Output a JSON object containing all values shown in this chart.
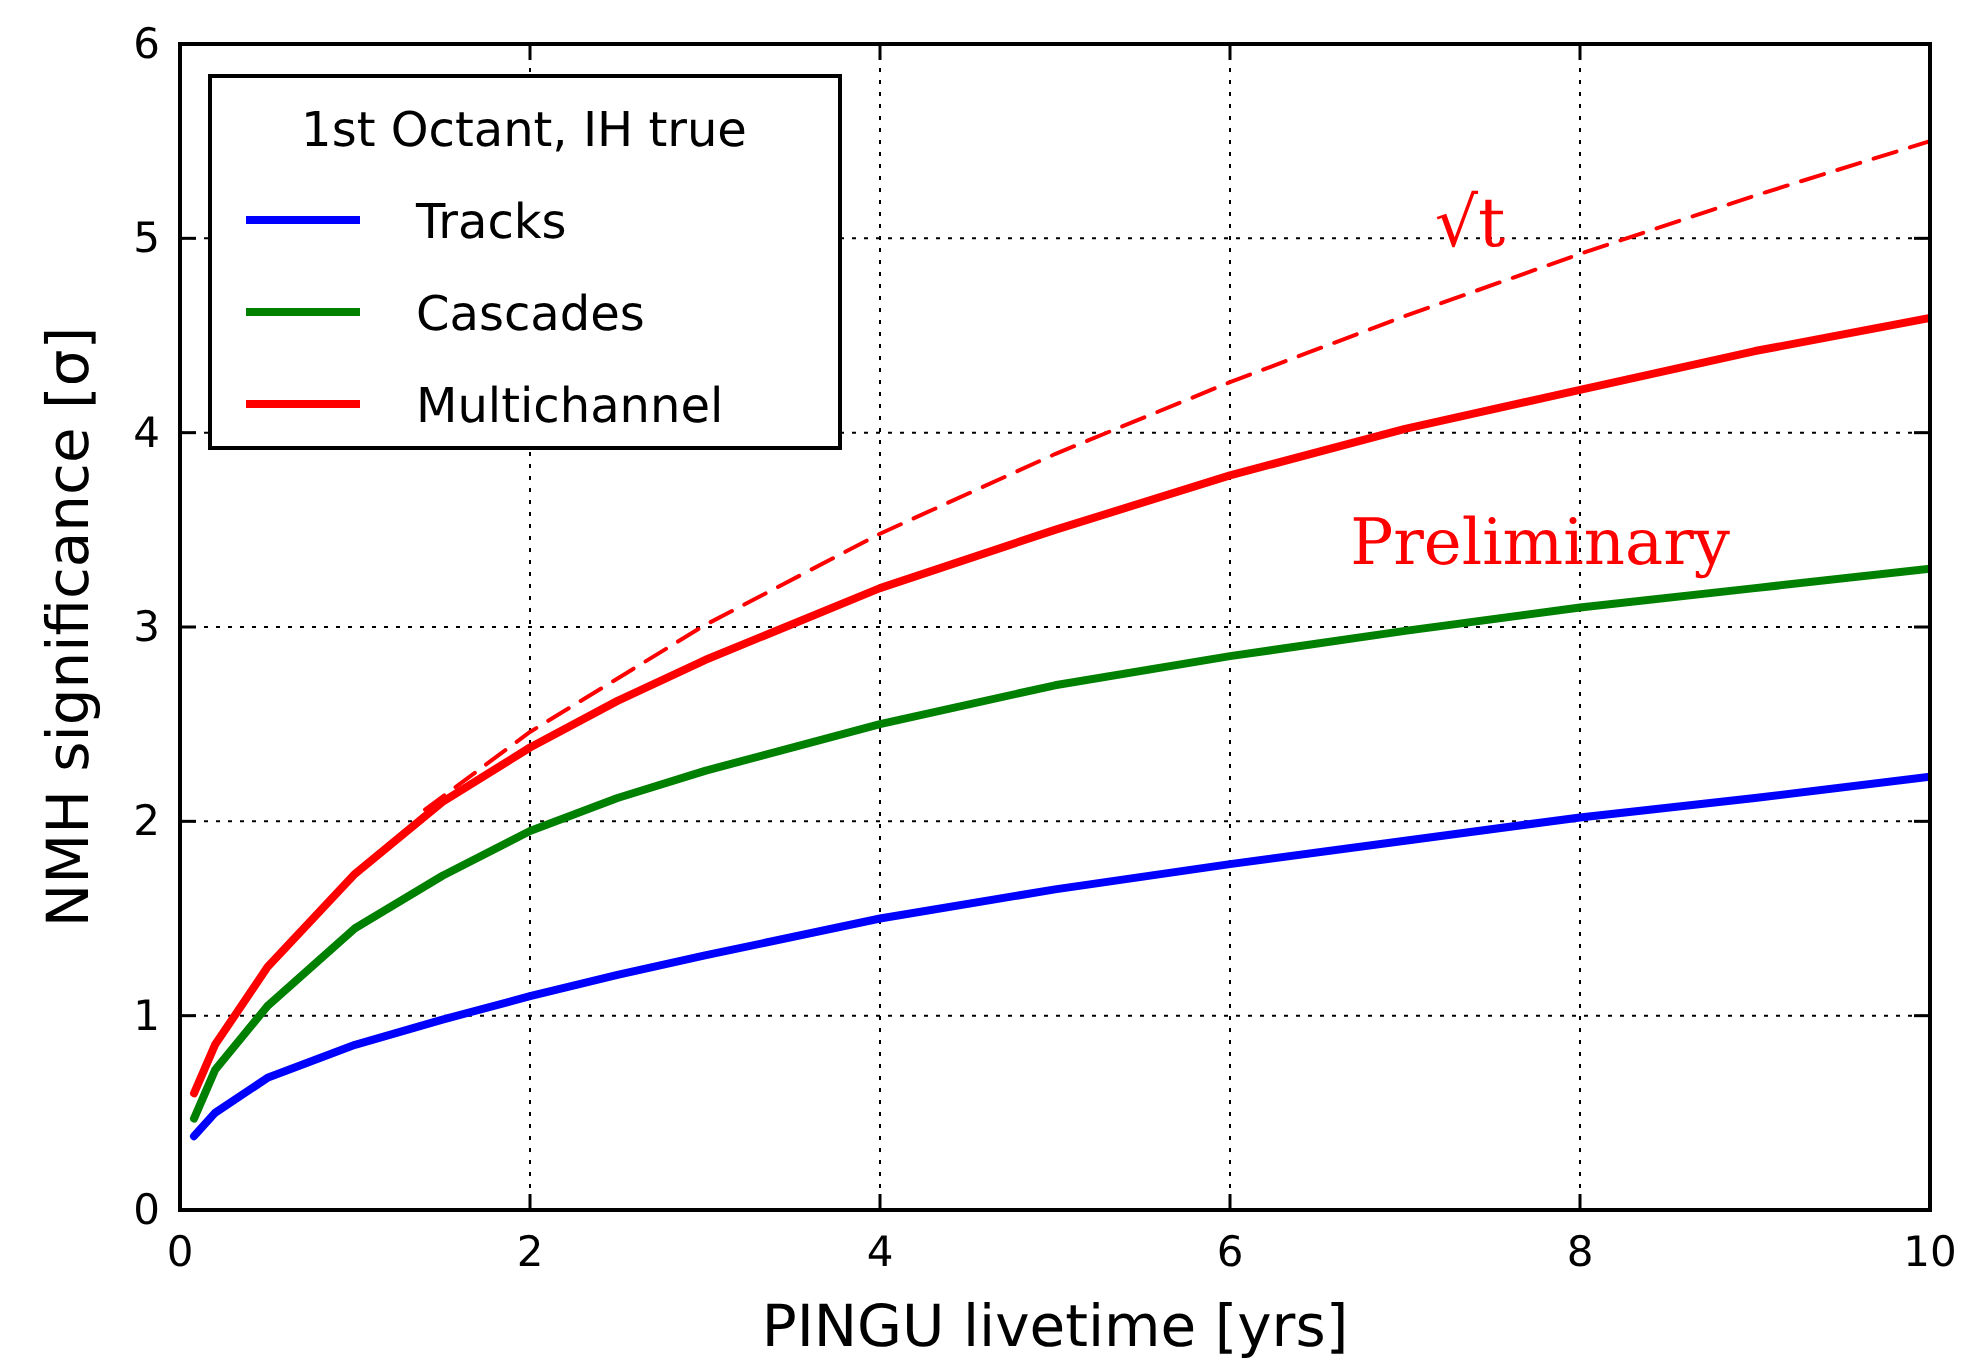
{
  "chart_data": {
    "type": "line",
    "xlabel": "PINGU livetime [yrs]",
    "ylabel": "NMH significance [σ]",
    "legend_title": "1st Octant, IH true",
    "legend": "top left",
    "grid": true,
    "xlim": [
      0,
      10
    ],
    "ylim": [
      0,
      6
    ],
    "xticks": [
      0,
      2,
      4,
      6,
      8,
      10
    ],
    "yticks": [
      0,
      1,
      2,
      3,
      4,
      5,
      6
    ],
    "x": [
      0.08,
      0.2,
      0.5,
      1,
      1.5,
      2,
      2.5,
      3,
      4,
      5,
      6,
      7,
      8,
      9,
      10
    ],
    "series": [
      {
        "name": "Tracks",
        "color": "#0000ff",
        "values": [
          0.38,
          0.5,
          0.68,
          0.85,
          0.98,
          1.1,
          1.21,
          1.31,
          1.5,
          1.65,
          1.78,
          1.9,
          2.02,
          2.12,
          2.23
        ]
      },
      {
        "name": "Cascades",
        "color": "#008000",
        "values": [
          0.47,
          0.72,
          1.05,
          1.45,
          1.72,
          1.95,
          2.12,
          2.26,
          2.5,
          2.7,
          2.85,
          2.98,
          3.1,
          3.2,
          3.3
        ]
      },
      {
        "name": "Multichannel",
        "color": "#ff0000",
        "values": [
          0.6,
          0.85,
          1.25,
          1.73,
          2.1,
          2.38,
          2.62,
          2.83,
          3.2,
          3.5,
          3.78,
          4.02,
          4.22,
          4.42,
          4.59
        ]
      },
      {
        "color": "#ff0000",
        "line_style": "dashed",
        "x": [
          1.4,
          2,
          3,
          4,
          5,
          6,
          7,
          8,
          9,
          10
        ],
        "values": [
          2.06,
          2.46,
          3.01,
          3.48,
          3.89,
          4.26,
          4.6,
          4.92,
          5.22,
          5.5
        ]
      }
    ],
    "annotations": [
      "√t",
      "Preliminary"
    ]
  }
}
